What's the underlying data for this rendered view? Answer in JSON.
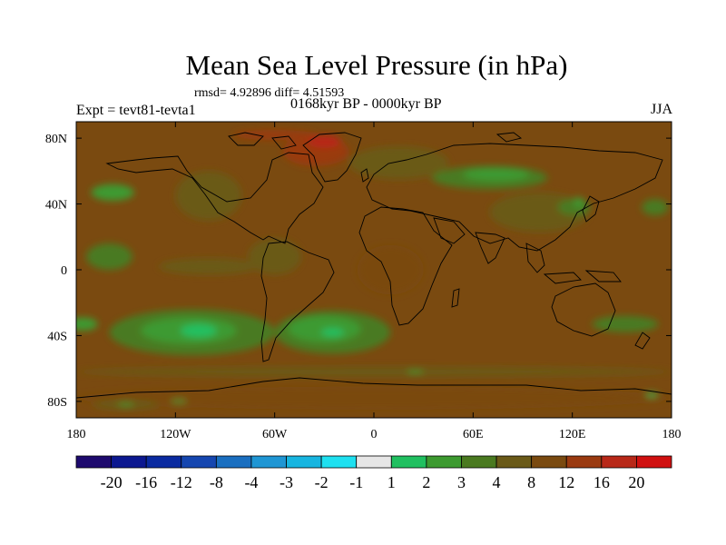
{
  "chart_data": {
    "type": "heatmap",
    "title": "Mean Sea Level Pressure (in hPa)",
    "stats": "rmsd= 4.92896 diff= 4.51593",
    "period": "0168kyr BP - 0000kyr BP",
    "experiment": "Expt = tevt81-tevta1",
    "season": "JJA",
    "x_ticks": [
      "180",
      "120W",
      "60W",
      "0",
      "60E",
      "120E",
      "180"
    ],
    "y_ticks": [
      "80N",
      "40N",
      "0",
      "40S",
      "80S"
    ],
    "xlim": [
      -180,
      180
    ],
    "ylim": [
      -90,
      90
    ],
    "colorbar": {
      "labels": [
        "-20",
        "-16",
        "-12",
        "-8",
        "-4",
        "-3",
        "-2",
        "-1",
        "1",
        "2",
        "3",
        "4",
        "8",
        "12",
        "16",
        "20"
      ],
      "colors": [
        "#1e0a6e",
        "#0c1890",
        "#0a2aa0",
        "#1546b0",
        "#1a6fc0",
        "#1f96d4",
        "#17b5e0",
        "#1ee0f0",
        "#e6e6e6",
        "#20c060",
        "#3c9a30",
        "#4a7a20",
        "#6a5a18",
        "#7a4a10",
        "#9a3a10",
        "#b82818",
        "#d01010"
      ]
    },
    "regions": [
      {
        "lon": -158,
        "lat": 47,
        "w": 26,
        "h": 10,
        "value": 2
      },
      {
        "lon": -100,
        "lat": 2,
        "w": 60,
        "h": 10,
        "value": 4
      },
      {
        "lon": -60,
        "lat": 8,
        "w": 32,
        "h": 22,
        "value": 4
      },
      {
        "lon": -160,
        "lat": 8,
        "w": 28,
        "h": 16,
        "value": 3
      },
      {
        "lon": -110,
        "lat": -38,
        "w": 100,
        "h": 28,
        "value": 3
      },
      {
        "lon": -25,
        "lat": -38,
        "w": 70,
        "h": 26,
        "value": 3
      },
      {
        "lon": -112,
        "lat": -37,
        "w": 58,
        "h": 16,
        "value": 2
      },
      {
        "lon": -30,
        "lat": -36,
        "w": 44,
        "h": 16,
        "value": 2
      },
      {
        "lon": -176,
        "lat": -33,
        "w": 18,
        "h": 8,
        "value": 2
      },
      {
        "lon": 152,
        "lat": -33,
        "w": 40,
        "h": 10,
        "value": 3
      },
      {
        "lon": -106,
        "lat": -37,
        "w": 22,
        "h": 8,
        "value": 1
      },
      {
        "lon": -25,
        "lat": -38,
        "w": 14,
        "h": 5,
        "value": 1
      },
      {
        "lon": 70,
        "lat": 56,
        "w": 70,
        "h": 14,
        "value": 3
      },
      {
        "lon": 74,
        "lat": 58,
        "w": 40,
        "h": 8,
        "value": 2
      },
      {
        "lon": 100,
        "lat": 35,
        "w": 60,
        "h": 24,
        "value": 4
      },
      {
        "lon": 121,
        "lat": 38,
        "w": 20,
        "h": 10,
        "value": 3
      },
      {
        "lon": 124,
        "lat": 41,
        "w": 6,
        "h": 6,
        "value": 2
      },
      {
        "lon": 170,
        "lat": 38,
        "w": 16,
        "h": 10,
        "value": 3
      },
      {
        "lon": -35,
        "lat": 72,
        "w": 40,
        "h": 18,
        "value": 12
      },
      {
        "lon": -30,
        "lat": 78,
        "w": 20,
        "h": 8,
        "value": 16
      },
      {
        "lon": -60,
        "lat": 82,
        "w": 50,
        "h": 6,
        "value": 12
      },
      {
        "lon": 10,
        "lat": 0,
        "w": 40,
        "h": 30,
        "value": 8
      },
      {
        "lon": 0,
        "lat": -78,
        "w": 360,
        "h": 14,
        "value": 8
      },
      {
        "lon": -150,
        "lat": -82,
        "w": 40,
        "h": 6,
        "value": 4
      },
      {
        "lon": 0,
        "lat": -62,
        "w": 360,
        "h": 6,
        "value": 4
      },
      {
        "lon": 15,
        "lat": 65,
        "w": 60,
        "h": 20,
        "value": 4
      },
      {
        "lon": -100,
        "lat": 45,
        "w": 40,
        "h": 30,
        "value": 4
      },
      {
        "lon": -150,
        "lat": -82,
        "w": 10,
        "h": 2,
        "value": 2
      },
      {
        "lon": -118,
        "lat": -80,
        "w": 10,
        "h": 2,
        "value": 2
      },
      {
        "lon": 25,
        "lat": -62,
        "w": 10,
        "h": 2,
        "value": 2
      },
      {
        "lon": 168,
        "lat": -76,
        "w": 8,
        "h": 3,
        "value": 2
      },
      {
        "lon": 168,
        "lat": -76,
        "w": 3,
        "h": 1.5,
        "value": 1
      }
    ],
    "background_value": 8
  }
}
